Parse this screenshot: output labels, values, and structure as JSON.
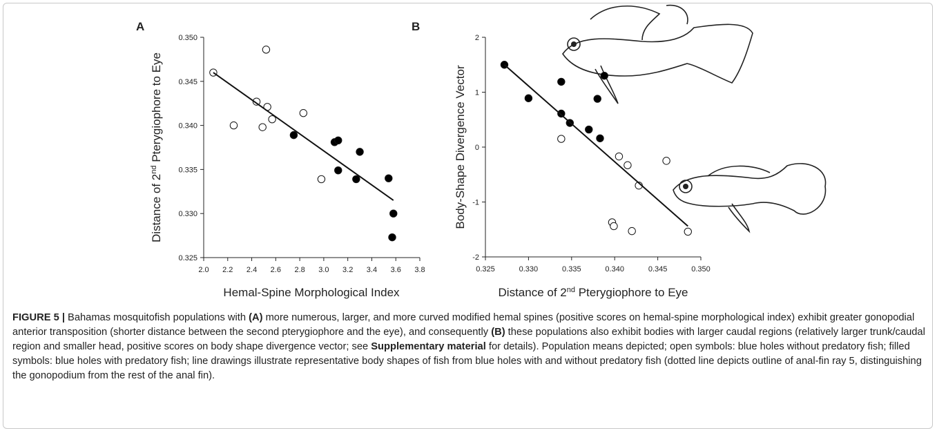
{
  "chart_data": [
    {
      "type": "scatter",
      "panel": "A",
      "x_label": [
        "Hemal-Spine Morphological Index"
      ],
      "y_label": [
        "Distance of 2",
        "nd",
        " Pterygiophore to Eye"
      ],
      "xlim": [
        2.0,
        3.8
      ],
      "xticks": [
        {
          "value": 2.0,
          "label": "2.0"
        },
        2.2,
        2.4,
        2.6,
        2.8,
        {
          "value": 3.0,
          "label": "3.0"
        },
        3.2,
        3.4,
        3.6,
        3.8
      ],
      "ylim": [
        0.325,
        0.35
      ],
      "yticks": [
        0.325,
        {
          "value": 0.33,
          "label": "0.330"
        },
        0.335,
        {
          "value": 0.34,
          "label": "0.340"
        },
        0.345,
        {
          "value": 0.35,
          "label": "0.350"
        }
      ],
      "series": [
        {
          "color": "#ffffff",
          "x": [
            2.08,
            2.25,
            2.44,
            2.52,
            2.49,
            2.53,
            2.57,
            2.83,
            2.98
          ],
          "values": [
            0.346,
            0.34,
            0.3427,
            0.3486,
            0.3398,
            0.3421,
            0.3407,
            0.3414,
            0.3339
          ]
        },
        {
          "color": "#000000",
          "x": [
            2.75,
            3.09,
            3.12,
            3.12,
            3.3,
            3.27,
            3.54,
            3.58,
            3.57
          ],
          "values": [
            0.3389,
            0.3381,
            0.3383,
            0.3349,
            0.337,
            0.3339,
            0.334,
            0.33,
            0.3273
          ]
        }
      ],
      "fit": {
        "x": [
          2.08,
          3.58
        ],
        "values": [
          0.346,
          0.3315
        ]
      }
    },
    {
      "type": "scatter",
      "panel": "B",
      "x_label": [
        "Distance of 2",
        "nd",
        " Pterygiophore to Eye"
      ],
      "y_label": [
        "Body-Shape Divergence Vector"
      ],
      "xlim": [
        0.325,
        0.35
      ],
      "xticks": [
        0.325,
        {
          "value": 0.33,
          "label": "0.330"
        },
        0.335,
        {
          "value": 0.34,
          "label": "0.340"
        },
        0.345,
        {
          "value": 0.35,
          "label": "0.350"
        }
      ],
      "ylim": [
        -2,
        2
      ],
      "yticks": [
        -2,
        -1,
        0,
        1,
        2
      ],
      "series": [
        {
          "color": "#ffffff",
          "x": [
            0.3338,
            0.3405,
            0.3415,
            0.3428,
            0.346,
            0.3397,
            0.3399,
            0.342,
            0.3485
          ],
          "values": [
            0.15,
            -0.17,
            -0.33,
            -0.7,
            -0.25,
            -1.37,
            -1.44,
            -1.53,
            -1.54
          ]
        },
        {
          "color": "#000000",
          "x": [
            0.3272,
            0.33,
            0.3338,
            0.3388,
            0.3338,
            0.3348,
            0.337,
            0.338,
            0.3383
          ],
          "values": [
            1.5,
            0.89,
            1.19,
            1.3,
            0.61,
            0.44,
            0.32,
            0.88,
            0.16
          ]
        }
      ],
      "fit": {
        "x": [
          0.3272,
          0.3485
        ],
        "values": [
          1.5,
          -1.44
        ]
      }
    }
  ],
  "caption": [
    {
      "text": "FIGURE 5 |",
      "bold": true
    },
    {
      "text": " Bahamas mosquitofish populations with ",
      "bold": false
    },
    {
      "text": "(A)",
      "bold": true
    },
    {
      "text": " more numerous, larger, and more curved modified hemal spines (positive scores on hemal-spine morphological index) exhibit greater gonopodial anterior transposition (shorter distance between the second pterygiophore and the eye), and consequently ",
      "bold": false
    },
    {
      "text": "(B)",
      "bold": true
    },
    {
      "text": " these populations also exhibit bodies with larger caudal regions (relatively larger trunk/caudal region and smaller head, positive scores on body shape divergence vector; see ",
      "bold": false
    },
    {
      "text": "Supplementary material",
      "bold": true
    },
    {
      "text": " for details). Population means depicted; open symbols: blue holes without predatory fish; filled symbols: blue holes with predatory fish; line drawings illustrate representative body shapes of fish from blue holes with and without predatory fish (dotted line depicts outline of anal-fin ray 5, distinguishing the gonopodium from the rest of the anal fin).",
      "bold": false
    }
  ]
}
